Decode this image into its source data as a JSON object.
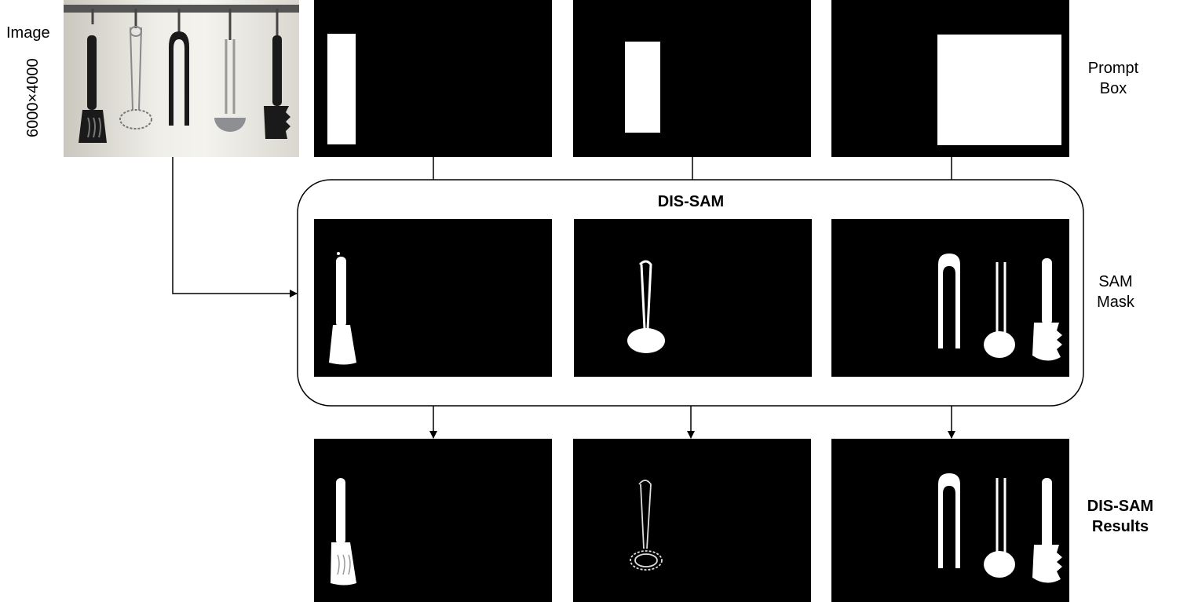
{
  "labels": {
    "image": "Image",
    "resolution": "6000×4000",
    "prompt_box": [
      "Prompt",
      "Box"
    ],
    "dis_sam_title": "DIS-SAM",
    "sam_mask": [
      "SAM",
      "Mask"
    ],
    "results": [
      "DIS-SAM",
      "Results"
    ]
  },
  "colors": {
    "panel_bg": "#000000",
    "mask_fg": "#ffffff",
    "arrow": "#000000"
  },
  "panels": {
    "prompt_row": [
      "prompt-box-1",
      "prompt-box-2",
      "prompt-box-3"
    ],
    "mask_row": [
      "sam-mask-spatula",
      "sam-mask-whisk",
      "sam-mask-tongs-ladle-pasta"
    ],
    "result_row": [
      "result-spatula",
      "result-whisk",
      "result-tongs-ladle-pasta"
    ]
  }
}
